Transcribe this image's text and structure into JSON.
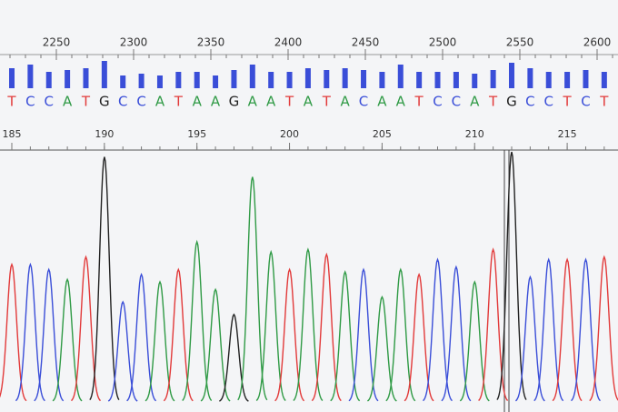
{
  "top_ruler": {
    "ticks": [
      2250,
      2300,
      2350,
      2400,
      2450,
      2500,
      2550,
      2600
    ]
  },
  "bottom_ruler": {
    "ticks": [
      185,
      190,
      195,
      200,
      205,
      210,
      215
    ]
  },
  "base_colors": {
    "A": "#2f9a45",
    "C": "#3a4ed8",
    "G": "#222222",
    "T": "#e23a3a"
  },
  "bases": [
    "T",
    "C",
    "C",
    "A",
    "T",
    "G",
    "C",
    "C",
    "A",
    "T",
    "A",
    "A",
    "G",
    "A",
    "A",
    "T",
    "A",
    "T",
    "A",
    "C",
    "A",
    "A",
    "T",
    "C",
    "C",
    "A",
    "T",
    "G",
    "C",
    "C",
    "T",
    "C",
    "T"
  ],
  "quality": [
    22,
    26,
    18,
    20,
    22,
    30,
    14,
    16,
    14,
    18,
    18,
    14,
    20,
    26,
    18,
    18,
    22,
    20,
    22,
    20,
    18,
    26,
    18,
    18,
    18,
    16,
    20,
    28,
    22,
    18,
    18,
    20,
    18
  ],
  "peak_heights": [
    55,
    55,
    53,
    49,
    58,
    98,
    40,
    51,
    48,
    53,
    64,
    45,
    35,
    90,
    60,
    53,
    61,
    59,
    52,
    53,
    42,
    53,
    51,
    57,
    54,
    48,
    61,
    100,
    50,
    57,
    57,
    57,
    58
  ]
}
